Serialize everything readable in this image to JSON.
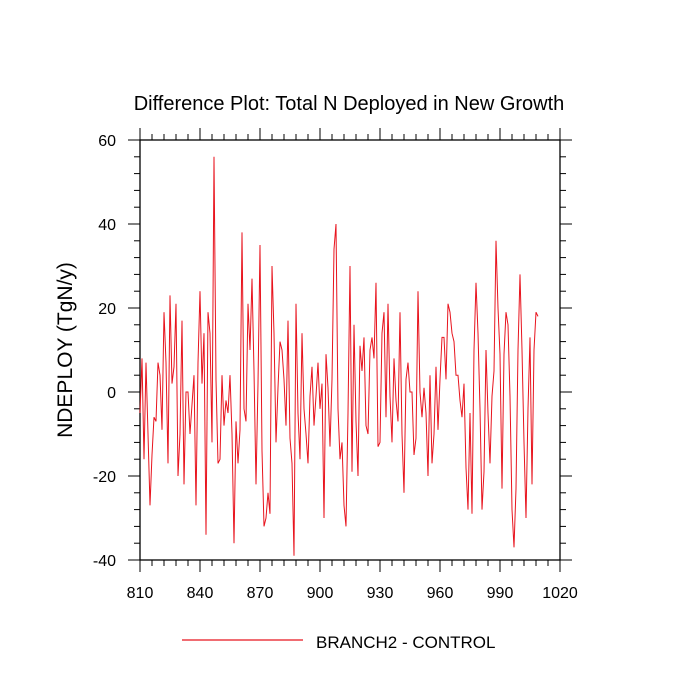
{
  "chart_data": {
    "type": "line",
    "title": "Difference Plot: Total N Deployed in New Growth",
    "xlabel": "",
    "ylabel": "NDEPLOY  (TgN/y)",
    "xlim": [
      810,
      1020
    ],
    "ylim": [
      -40,
      60
    ],
    "x_ticks": [
      810,
      840,
      870,
      900,
      930,
      960,
      990,
      1020
    ],
    "y_ticks": [
      -40,
      -20,
      0,
      20,
      40,
      60
    ],
    "legend_position": "bottom",
    "series": [
      {
        "name": "BRANCH2 - CONTROL",
        "color": "#e8141e",
        "x_start": 810,
        "x_step": 1,
        "values": [
          -5,
          8,
          -16,
          7,
          -10,
          -27,
          -15,
          -6,
          -7,
          7,
          4,
          -9,
          19,
          7,
          -17,
          23,
          2,
          6,
          21,
          -20,
          -10,
          17,
          -22,
          0,
          0,
          -10,
          -3,
          4,
          -27,
          7,
          24,
          2,
          14,
          -34,
          19,
          14,
          -12,
          56,
          3,
          -17,
          -16,
          4,
          -8,
          -2,
          -5,
          4,
          -10,
          -36,
          -7,
          -17,
          -9,
          38,
          -4,
          -7,
          21,
          10,
          27,
          5,
          -22,
          2,
          35,
          -14,
          -32,
          -30,
          -24,
          -29,
          30,
          14,
          -12,
          1,
          12,
          10,
          3,
          -8,
          17,
          -11,
          -17,
          -39,
          21,
          -5,
          -16,
          14,
          -4,
          -10,
          -17,
          -1,
          6,
          -8,
          -1,
          7,
          -4,
          2,
          -30,
          9,
          1,
          -13,
          3,
          34,
          40,
          -4,
          -16,
          -12,
          -27,
          -32,
          -5,
          30,
          -19,
          16,
          -7,
          -20,
          11,
          5,
          13,
          -8,
          -10,
          10,
          13,
          8,
          26,
          -13,
          -12,
          14,
          19,
          -6,
          21,
          -1,
          -12,
          8,
          -2,
          -7,
          19,
          -10,
          -24,
          3,
          7,
          0,
          0,
          -15,
          -11,
          24,
          0,
          -6,
          1,
          -5,
          -20,
          4,
          -17,
          -10,
          6,
          -9,
          3,
          13,
          13,
          3,
          21,
          19,
          14,
          12,
          4,
          4,
          -2,
          -6,
          2,
          -18,
          -28,
          -5,
          -29,
          10,
          26,
          14,
          -4,
          -28,
          -19,
          10,
          -5,
          -17,
          -1,
          5,
          36,
          20,
          9,
          -23,
          9,
          19,
          16,
          -1,
          -28,
          -37,
          -23,
          10,
          28,
          10,
          -12,
          -30,
          -4,
          13,
          -22,
          10,
          19,
          18
        ]
      }
    ]
  }
}
